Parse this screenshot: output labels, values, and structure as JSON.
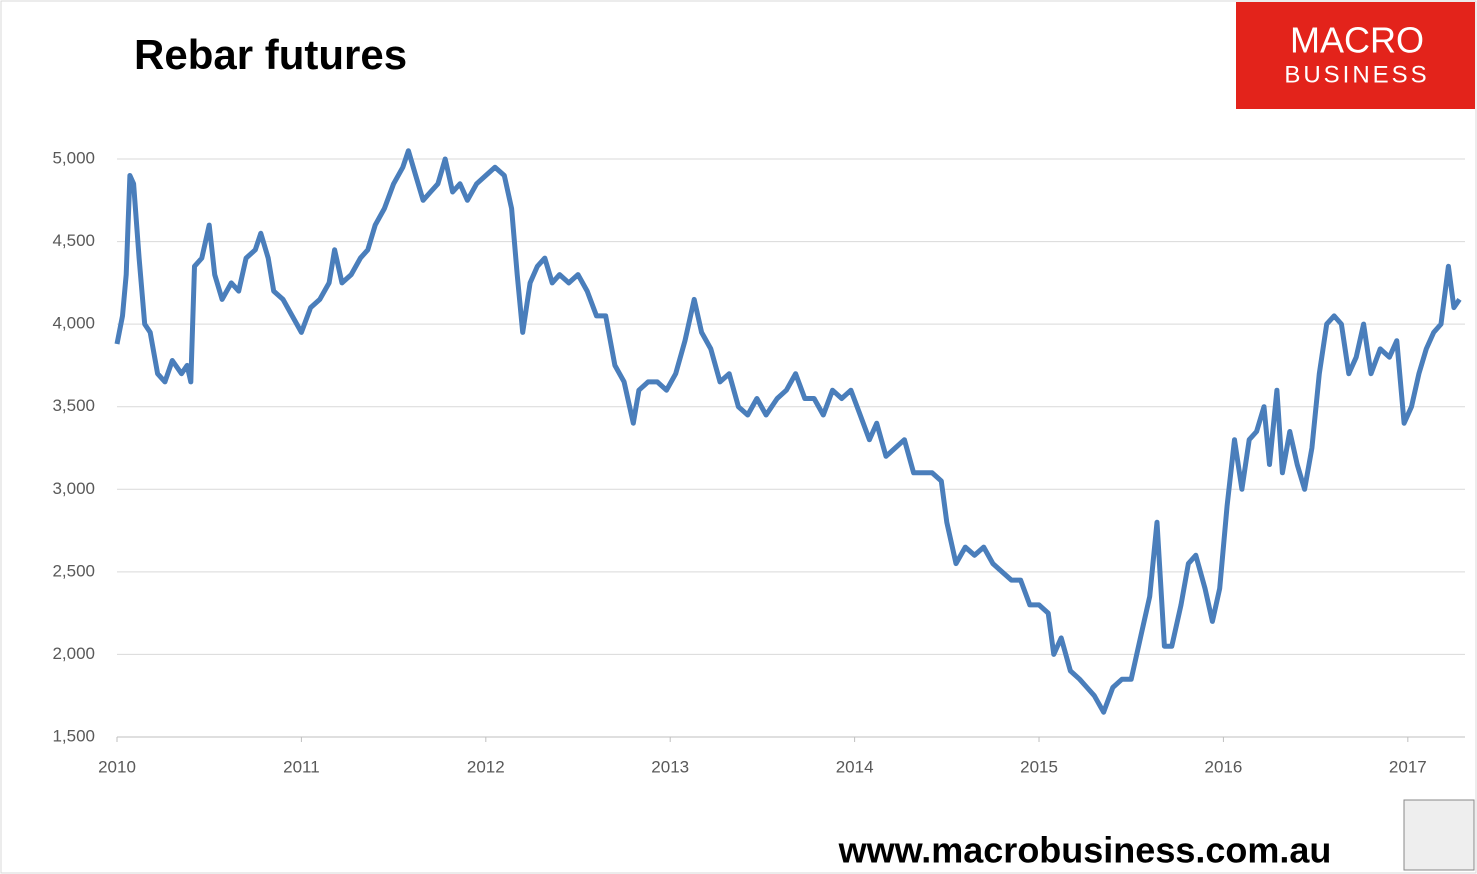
{
  "chart_data": {
    "type": "line",
    "title": "Rebar futures",
    "x": [
      2010.0,
      2010.03,
      2010.05,
      2010.07,
      2010.09,
      2010.12,
      2010.15,
      2010.18,
      2010.22,
      2010.26,
      2010.3,
      2010.35,
      2010.38,
      2010.4,
      2010.42,
      2010.46,
      2010.5,
      2010.53,
      2010.57,
      2010.62,
      2010.66,
      2010.7,
      2010.75,
      2010.78,
      2010.82,
      2010.85,
      2010.9,
      2010.95,
      2011.0,
      2011.05,
      2011.1,
      2011.15,
      2011.18,
      2011.22,
      2011.27,
      2011.32,
      2011.36,
      2011.4,
      2011.45,
      2011.5,
      2011.55,
      2011.58,
      2011.62,
      2011.66,
      2011.7,
      2011.74,
      2011.78,
      2011.82,
      2011.86,
      2011.9,
      2011.95,
      2012.0,
      2012.05,
      2012.1,
      2012.14,
      2012.17,
      2012.2,
      2012.24,
      2012.28,
      2012.32,
      2012.36,
      2012.4,
      2012.45,
      2012.5,
      2012.55,
      2012.6,
      2012.65,
      2012.7,
      2012.75,
      2012.8,
      2012.83,
      2012.88,
      2012.93,
      2012.98,
      2013.03,
      2013.08,
      2013.13,
      2013.17,
      2013.22,
      2013.27,
      2013.32,
      2013.37,
      2013.42,
      2013.47,
      2013.52,
      2013.58,
      2013.63,
      2013.68,
      2013.73,
      2013.78,
      2013.83,
      2013.88,
      2013.93,
      2013.98,
      2014.03,
      2014.08,
      2014.12,
      2014.17,
      2014.22,
      2014.27,
      2014.32,
      2014.37,
      2014.42,
      2014.47,
      2014.5,
      2014.55,
      2014.6,
      2014.65,
      2014.7,
      2014.75,
      2014.8,
      2014.85,
      2014.9,
      2014.95,
      2015.0,
      2015.05,
      2015.08,
      2015.12,
      2015.17,
      2015.22,
      2015.26,
      2015.3,
      2015.35,
      2015.4,
      2015.45,
      2015.5,
      2015.55,
      2015.6,
      2015.64,
      2015.68,
      2015.72,
      2015.77,
      2015.81,
      2015.85,
      2015.9,
      2015.94,
      2015.98,
      2016.02,
      2016.06,
      2016.1,
      2016.14,
      2016.18,
      2016.22,
      2016.25,
      2016.29,
      2016.32,
      2016.36,
      2016.4,
      2016.44,
      2016.48,
      2016.52,
      2016.56,
      2016.6,
      2016.64,
      2016.68,
      2016.72,
      2016.76,
      2016.8,
      2016.85,
      2016.9,
      2016.94,
      2016.98,
      2017.02,
      2017.06,
      2017.1,
      2017.14,
      2017.18,
      2017.22,
      2017.25,
      2017.28
    ],
    "series": [
      {
        "color": "#4a7ebb",
        "values": [
          3880,
          4050,
          4300,
          4900,
          4850,
          4400,
          4000,
          3950,
          3700,
          3650,
          3780,
          3700,
          3750,
          3650,
          4350,
          4400,
          4600,
          4300,
          4150,
          4250,
          4200,
          4400,
          4450,
          4550,
          4400,
          4200,
          4150,
          4050,
          3950,
          4100,
          4150,
          4250,
          4450,
          4250,
          4300,
          4400,
          4450,
          4600,
          4700,
          4850,
          4950,
          5050,
          4900,
          4750,
          4800,
          4850,
          5000,
          4800,
          4850,
          4750,
          4850,
          4900,
          4950,
          4900,
          4700,
          4300,
          3950,
          4250,
          4350,
          4400,
          4250,
          4300,
          4250,
          4300,
          4200,
          4050,
          4050,
          3750,
          3650,
          3400,
          3600,
          3650,
          3650,
          3600,
          3700,
          3900,
          4150,
          3950,
          3850,
          3650,
          3700,
          3500,
          3450,
          3550,
          3450,
          3550,
          3600,
          3700,
          3550,
          3550,
          3450,
          3600,
          3550,
          3600,
          3450,
          3300,
          3400,
          3200,
          3250,
          3300,
          3100,
          3100,
          3100,
          3050,
          2800,
          2550,
          2650,
          2600,
          2650,
          2550,
          2500,
          2450,
          2450,
          2300,
          2300,
          2250,
          2000,
          2100,
          1900,
          1850,
          1800,
          1750,
          1650,
          1800,
          1850,
          1850,
          2100,
          2350,
          2800,
          2050,
          2050,
          2300,
          2550,
          2600,
          2400,
          2200,
          2400,
          2900,
          3300,
          3000,
          3300,
          3350,
          3500,
          3150,
          3600,
          3100,
          3350,
          3150,
          3000,
          3250,
          3700,
          4000,
          4050,
          4000,
          3700,
          3800,
          4000,
          3700,
          3850,
          3800,
          3900,
          3400,
          3500,
          3700,
          3850,
          3950,
          4000,
          4350,
          4100,
          4150
        ]
      }
    ],
    "xlim": [
      2010,
      2017.31
    ],
    "xticks": [
      2010,
      2011,
      2012,
      2013,
      2014,
      2015,
      2016,
      2017
    ],
    "ylim": [
      1500,
      5000
    ],
    "yticks": [
      {
        "value": 1500,
        "label": "1,500"
      },
      {
        "value": 2000,
        "label": "2,000"
      },
      {
        "value": 2500,
        "label": "2,500"
      },
      {
        "value": 3000,
        "label": "3,000"
      },
      {
        "value": 3500,
        "label": "3,500"
      },
      {
        "value": 4000,
        "label": "4,000"
      },
      {
        "value": 4500,
        "label": "4,500"
      },
      {
        "value": 5000,
        "label": "5,000"
      }
    ],
    "grid": true
  },
  "logo": {
    "line1": "MACRO",
    "line2": "BUSINESS"
  },
  "footer": "www.macrobusiness.com.au"
}
